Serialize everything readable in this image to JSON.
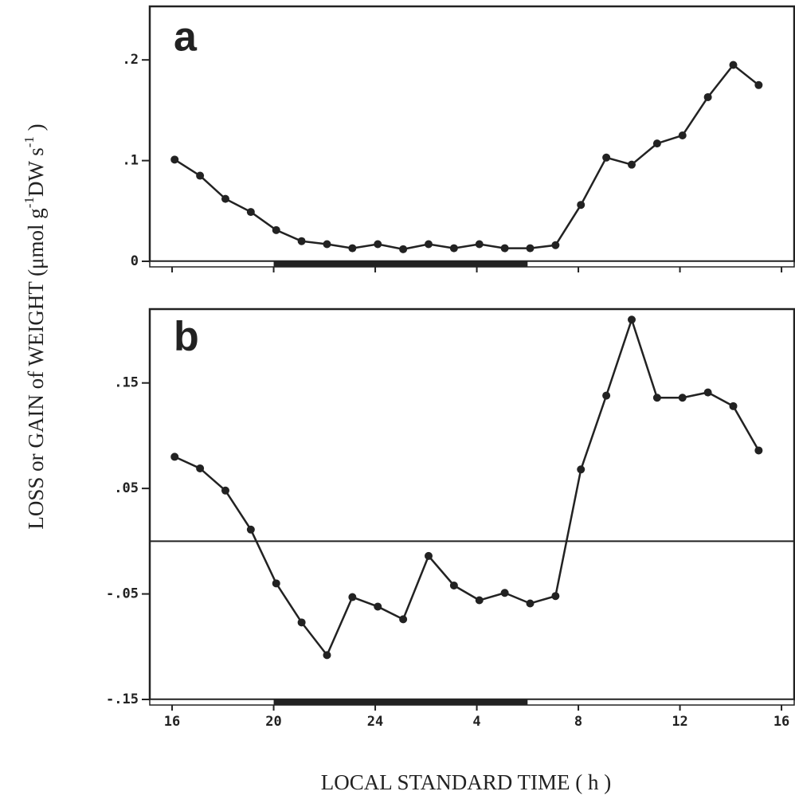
{
  "y_label": [
    "LOSS or GAIN of WEIGHT  (μmol g",
    "-1",
    "DW  s",
    "-1",
    " )"
  ],
  "x_label": "LOCAL STANDARD TIME  ( h )",
  "chart_data": [
    {
      "type": "line",
      "panel_label": "a",
      "color": "#222222",
      "x": [
        16.1,
        17.1,
        18.1,
        19.1,
        20.1,
        21.1,
        22.1,
        23.1,
        24.1,
        25.1,
        26.1,
        27.1,
        28.1,
        29.1,
        30.1,
        31.1,
        32.1,
        33.1,
        34.1,
        35.1,
        36.1,
        37.1,
        38.1,
        39.1
      ],
      "values": [
        0.101,
        0.085,
        0.062,
        0.049,
        0.031,
        0.02,
        0.017,
        0.013,
        0.017,
        0.012,
        0.017,
        0.013,
        0.017,
        0.013,
        0.013,
        0.016,
        0.056,
        0.103,
        0.096,
        0.117,
        0.125,
        0.163,
        0.195,
        0.175
      ],
      "xlim": [
        15.12,
        40.5
      ],
      "ylim": [
        0,
        0.25
      ],
      "xticks": [
        16,
        20,
        24,
        28,
        32,
        36,
        40
      ],
      "yticks": [
        0,
        {
          "value": 0.1,
          "label": ".1"
        },
        {
          "value": 0.2,
          "label": ".2"
        }
      ],
      "dark_period": [
        20,
        30
      ],
      "zero_line": false,
      "xtick_labels": false
    },
    {
      "type": "line",
      "panel_label": "b",
      "color": "#222222",
      "x": [
        16.1,
        17.1,
        18.1,
        19.1,
        20.1,
        21.1,
        22.1,
        23.1,
        24.1,
        25.1,
        26.1,
        27.1,
        28.1,
        29.1,
        30.1,
        31.1,
        32.1,
        33.1,
        34.1,
        35.1,
        36.1,
        37.1,
        38.1,
        39.1
      ],
      "values": [
        0.08,
        0.069,
        0.048,
        0.011,
        -0.04,
        -0.077,
        -0.108,
        -0.053,
        -0.062,
        -0.074,
        -0.014,
        -0.042,
        -0.056,
        -0.049,
        -0.059,
        -0.052,
        0.068,
        0.138,
        0.21,
        0.136,
        0.136,
        0.141,
        0.128,
        0.086
      ],
      "xlim": [
        15.12,
        40.5
      ],
      "ylim": [
        -0.15,
        0.22
      ],
      "xticks": [
        16,
        20,
        24,
        {
          "value": 28,
          "label": "4"
        },
        {
          "value": 32,
          "label": "8"
        },
        {
          "value": 36,
          "label": "12"
        },
        {
          "value": 40,
          "label": "16"
        }
      ],
      "yticks": [
        {
          "value": -0.15,
          "label": "-.15"
        },
        {
          "value": -0.05,
          "label": "-.05"
        },
        {
          "value": 0.05,
          "label": ".05"
        },
        {
          "value": 0.15,
          "label": ".15"
        }
      ],
      "dark_period": [
        20,
        30
      ],
      "zero_line": true,
      "xtick_labels": true
    }
  ]
}
